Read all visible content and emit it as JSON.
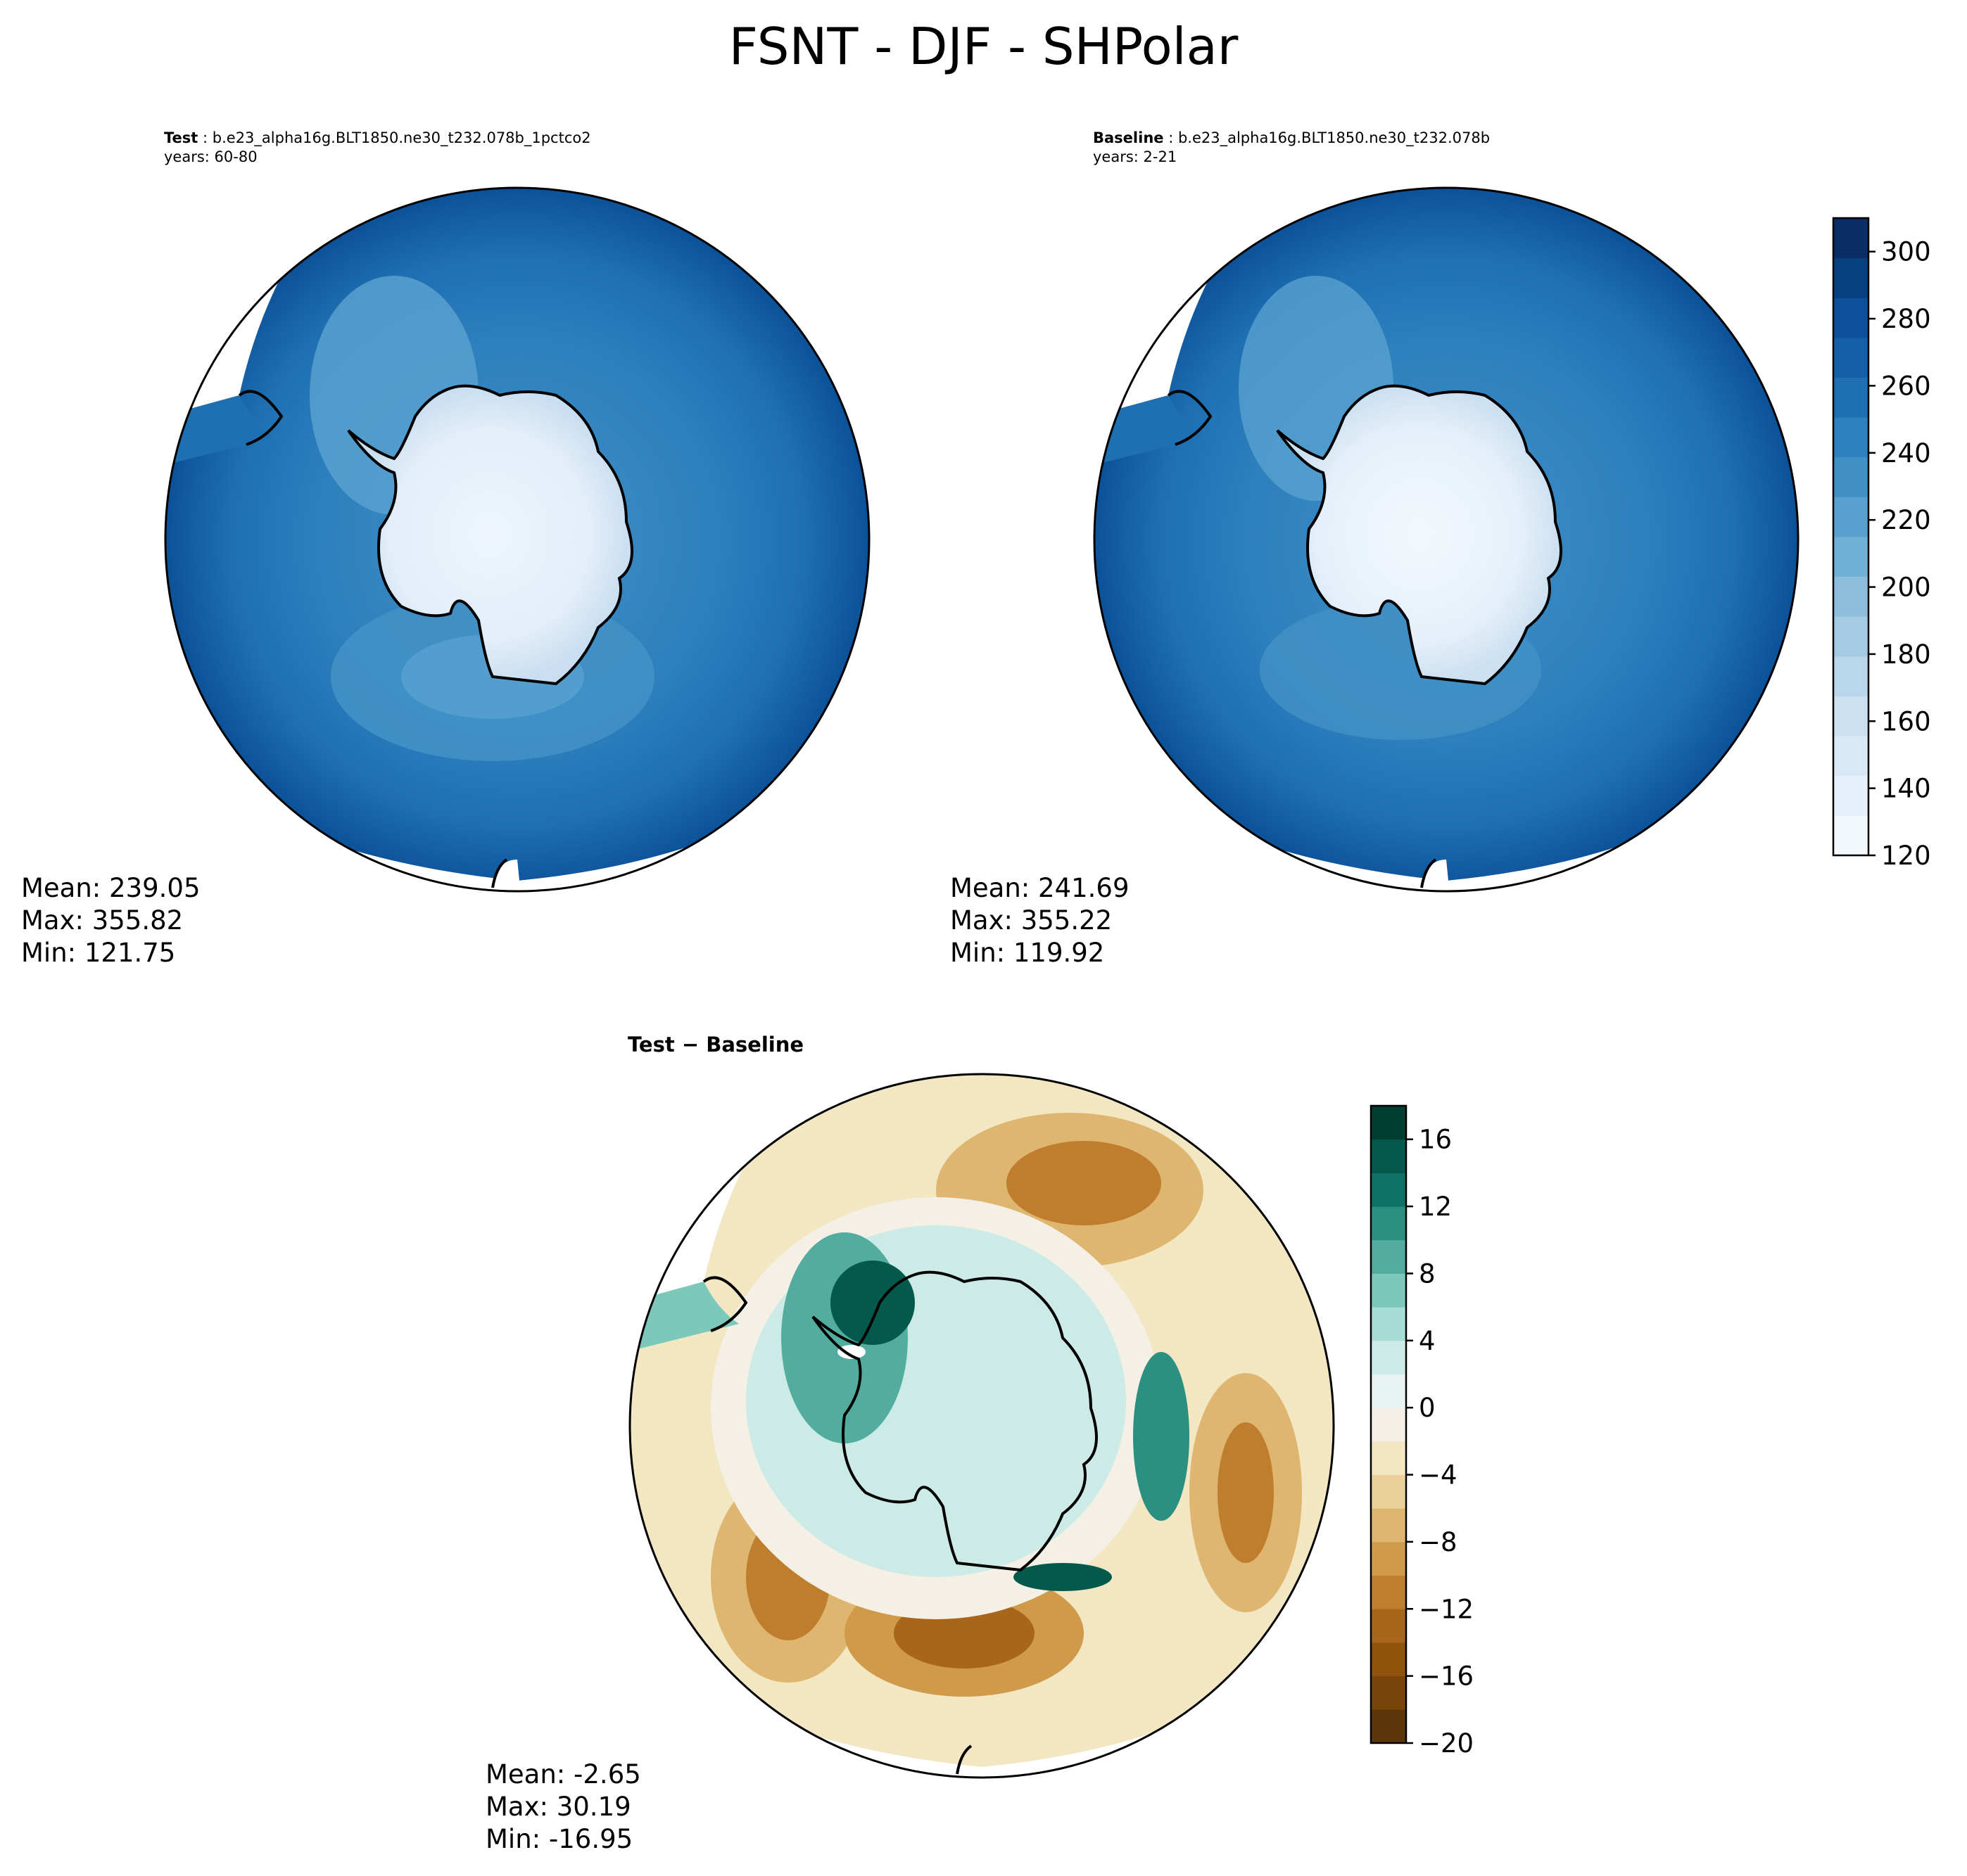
{
  "title": "FSNT - DJF - SHPolar",
  "panels": {
    "test": {
      "label": "Test",
      "case": "b.e23_alpha16g.BLT1850.ne30_t232.078b_1pctco2",
      "years": "years: 60-80",
      "stats": {
        "mean": "Mean: 239.05",
        "max": "Max: 355.82",
        "min": "Min: 121.75"
      }
    },
    "baseline": {
      "label": "Baseline",
      "case": "b.e23_alpha16g.BLT1850.ne30_t232.078b",
      "years": "years: 2-21",
      "stats": {
        "mean": "Mean: 241.69",
        "max": "Max: 355.22",
        "min": "Min: 119.92"
      }
    },
    "difference": {
      "label": "Test − Baseline",
      "stats": {
        "mean": "Mean: -2.65",
        "max": "Max: 30.19",
        "min": "Min: -16.95"
      }
    }
  },
  "colorbars": {
    "main": {
      "colormap": "Blues",
      "range": [
        120,
        310
      ],
      "ticks": [
        120,
        140,
        160,
        180,
        200,
        220,
        240,
        260,
        280,
        300
      ],
      "tick_labels": [
        "120",
        "140",
        "160",
        "180",
        "200",
        "220",
        "240",
        "260",
        "280",
        "300"
      ],
      "colors": [
        "#f3f8fd",
        "#e6f0fa",
        "#d9e8f5",
        "#cce0f1",
        "#bad6eb",
        "#a5cae4",
        "#8dbfdd",
        "#72b1d7",
        "#58a1cf",
        "#4191c6",
        "#2e80be",
        "#1f70b3",
        "#1460a8",
        "#0b5098",
        "#08407f",
        "#082e63"
      ]
    },
    "difference": {
      "colormap": "BrBG",
      "range": [
        -20,
        18
      ],
      "ticks": [
        -20,
        -16,
        -12,
        -8,
        -4,
        0,
        4,
        8,
        12,
        16
      ],
      "tick_labels": [
        "−20",
        "−16",
        "−12",
        "−8",
        "−4",
        "0",
        "4",
        "8",
        "12",
        "16"
      ],
      "colors": [
        "#5c3508",
        "#774409",
        "#8f530c",
        "#a8651c",
        "#bf7e2d",
        "#d09a4b",
        "#dfb670",
        "#ead199",
        "#f3e6c3",
        "#f5f0e6",
        "#e9f3f1",
        "#cdebe6",
        "#a6ddd4",
        "#7cc9bc",
        "#52ad9f",
        "#2b8f82",
        "#0f7266",
        "#035a4c",
        "#013e32"
      ]
    }
  }
}
